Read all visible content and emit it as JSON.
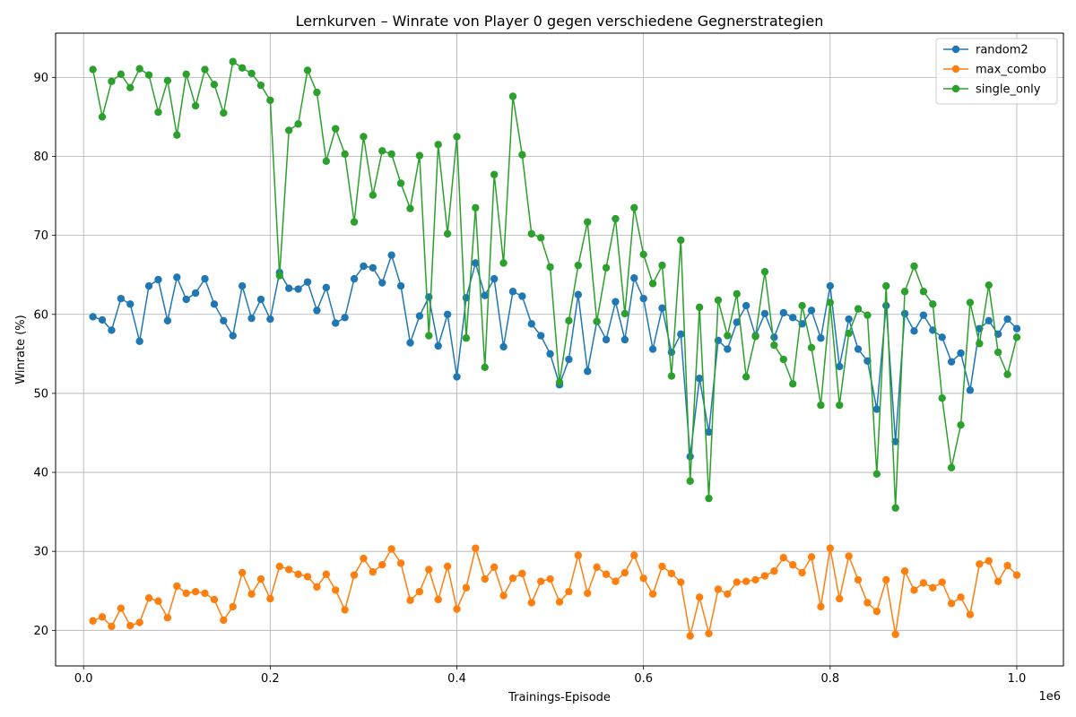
{
  "chart_data": {
    "type": "line",
    "title": "Lernkurven – Winrate von Player 0 gegen verschiedene Gegnerstrategien",
    "xlabel": "Trainings-Episode",
    "ylabel": "Winrate (%)",
    "x_offset_label": "1e6",
    "xlim": [
      -0.03,
      1.05
    ],
    "ylim": [
      15.5,
      95.6
    ],
    "xticks": [
      0.0,
      0.2,
      0.4,
      0.6,
      0.8,
      1.0
    ],
    "xtick_labels": [
      "0.0",
      "0.2",
      "0.4",
      "0.6",
      "0.8",
      "1.0"
    ],
    "yticks": [
      20,
      30,
      40,
      50,
      60,
      70,
      80,
      90
    ],
    "ytick_labels": [
      "20",
      "30",
      "40",
      "50",
      "60",
      "70",
      "80",
      "90"
    ],
    "grid": true,
    "legend_position": "top-right",
    "x_start": 0.01,
    "x_step": 0.01,
    "series": [
      {
        "name": "random2",
        "color": "#1f77b4",
        "values": [
          59.7,
          59.3,
          58.0,
          62.0,
          61.3,
          56.6,
          63.6,
          64.4,
          59.2,
          64.7,
          61.9,
          62.7,
          64.5,
          61.3,
          59.2,
          57.3,
          63.6,
          59.5,
          61.9,
          59.4,
          65.3,
          63.3,
          63.2,
          64.1,
          60.5,
          63.4,
          58.9,
          59.6,
          64.5,
          66.1,
          65.9,
          64.0,
          67.5,
          63.6,
          56.4,
          59.8,
          62.2,
          56.0,
          60.0,
          52.1,
          62.1,
          66.5,
          62.4,
          64.5,
          55.9,
          62.9,
          62.3,
          58.8,
          57.3,
          55.0,
          51.1,
          54.3,
          62.5,
          52.8,
          59.1,
          56.8,
          61.6,
          56.8,
          64.6,
          62.0,
          55.6,
          60.8,
          55.2,
          57.5,
          42.0,
          51.9,
          45.1,
          56.7,
          55.6,
          59.0,
          61.1,
          57.3,
          60.1,
          57.1,
          60.2,
          59.6,
          58.8,
          60.5,
          57.0,
          63.6,
          53.4,
          59.4,
          55.6,
          54.1,
          48.0,
          61.1,
          43.9,
          60.1,
          57.9,
          59.9,
          58.0,
          57.1,
          54.0,
          55.1,
          50.4,
          58.2,
          59.2,
          57.5,
          59.4,
          58.2
        ]
      },
      {
        "name": "max_combo",
        "color": "#ff7f0e",
        "values": [
          21.2,
          21.7,
          20.5,
          22.8,
          20.6,
          21.0,
          24.1,
          23.7,
          21.6,
          25.6,
          24.7,
          24.9,
          24.7,
          23.9,
          21.3,
          23.0,
          27.3,
          24.6,
          26.5,
          24.0,
          28.1,
          27.7,
          27.1,
          26.8,
          25.5,
          27.1,
          25.1,
          22.6,
          27.0,
          29.1,
          27.4,
          28.3,
          30.3,
          28.5,
          23.8,
          24.9,
          27.7,
          23.9,
          28.1,
          22.7,
          25.4,
          30.4,
          26.5,
          28.0,
          24.4,
          26.6,
          27.2,
          23.5,
          26.2,
          26.5,
          23.6,
          24.9,
          29.5,
          24.7,
          28.0,
          27.1,
          26.2,
          27.3,
          29.5,
          26.6,
          24.6,
          28.1,
          27.2,
          26.1,
          19.3,
          24.2,
          19.6,
          25.2,
          24.6,
          26.1,
          26.2,
          26.4,
          26.9,
          27.5,
          29.2,
          28.3,
          27.3,
          29.3,
          23.0,
          30.4,
          24.0,
          29.4,
          26.4,
          23.5,
          22.4,
          26.4,
          19.5,
          27.5,
          25.1,
          26.0,
          25.4,
          26.1,
          23.4,
          24.2,
          22.0,
          28.4,
          28.8,
          26.2,
          28.2,
          27.0
        ]
      },
      {
        "name": "single_only",
        "color": "#2ca02c",
        "values": [
          91.0,
          85.0,
          89.5,
          90.4,
          88.7,
          91.1,
          90.3,
          85.6,
          89.6,
          82.7,
          90.4,
          86.4,
          91.0,
          89.1,
          85.5,
          92.0,
          91.2,
          90.5,
          89.0,
          87.1,
          64.9,
          83.3,
          84.1,
          90.9,
          88.1,
          79.4,
          83.5,
          80.3,
          71.7,
          82.5,
          75.1,
          80.7,
          80.3,
          76.6,
          73.4,
          80.1,
          57.3,
          81.5,
          70.2,
          82.5,
          57.0,
          73.5,
          53.3,
          77.7,
          66.5,
          87.6,
          80.2,
          70.2,
          69.7,
          66.0,
          51.4,
          59.2,
          66.2,
          71.7,
          59.1,
          65.9,
          72.1,
          60.1,
          73.5,
          67.6,
          63.9,
          66.2,
          52.2,
          69.4,
          38.9,
          60.9,
          36.7,
          61.8,
          57.3,
          62.6,
          52.1,
          57.2,
          65.4,
          56.1,
          54.3,
          51.2,
          61.1,
          55.8,
          48.5,
          61.5,
          48.5,
          57.6,
          60.7,
          59.9,
          39.8,
          63.6,
          35.5,
          62.9,
          66.1,
          62.9,
          61.3,
          49.4,
          40.6,
          46.0,
          61.5,
          56.3,
          63.7,
          55.2,
          52.4,
          57.1
        ]
      }
    ]
  }
}
